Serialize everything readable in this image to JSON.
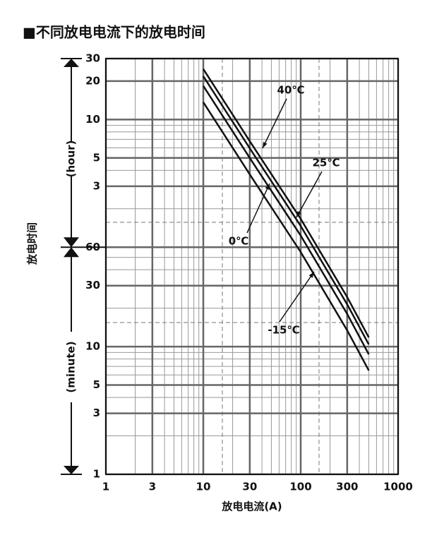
{
  "chart_data": {
    "type": "line",
    "title": "■不同放电电流下的放电时间",
    "x_label": "放电电流(A)",
    "y_label": "放电时间",
    "y_unit_upper": "(hour)",
    "y_unit_lower": "(minute)",
    "log_x": true,
    "log_y": true,
    "grid": true,
    "xlim": [
      1,
      1000
    ],
    "xticks": [
      1,
      3,
      10,
      30,
      100,
      300,
      1000
    ],
    "ylim": [
      1,
      1800
    ],
    "yticks": [
      1,
      3,
      5,
      10,
      30,
      {
        "value": 60,
        "label": "60"
      },
      {
        "value": 180,
        "label": "3"
      },
      {
        "value": 300,
        "label": "5"
      },
      {
        "value": 600,
        "label": "10"
      },
      {
        "value": 1200,
        "label": "20"
      },
      {
        "value": 1800,
        "label": "30"
      }
    ],
    "x": [
      10,
      30,
      100,
      300,
      500
    ],
    "series": [
      {
        "name": "40℃",
        "color": "#111111",
        "values": [
          1490,
          406,
          100,
          24.4,
          11.8
        ]
      },
      {
        "name": "25℃",
        "color": "#111111",
        "values": [
          1310,
          357,
          88,
          21.4,
          10.4
        ]
      },
      {
        "name": "0℃",
        "color": "#111111",
        "values": [
          1100,
          300,
          74,
          18,
          8.7
        ]
      },
      {
        "name": "-15℃",
        "color": "#111111",
        "values": [
          820,
          223,
          55,
          13.4,
          6.5
        ]
      }
    ]
  }
}
